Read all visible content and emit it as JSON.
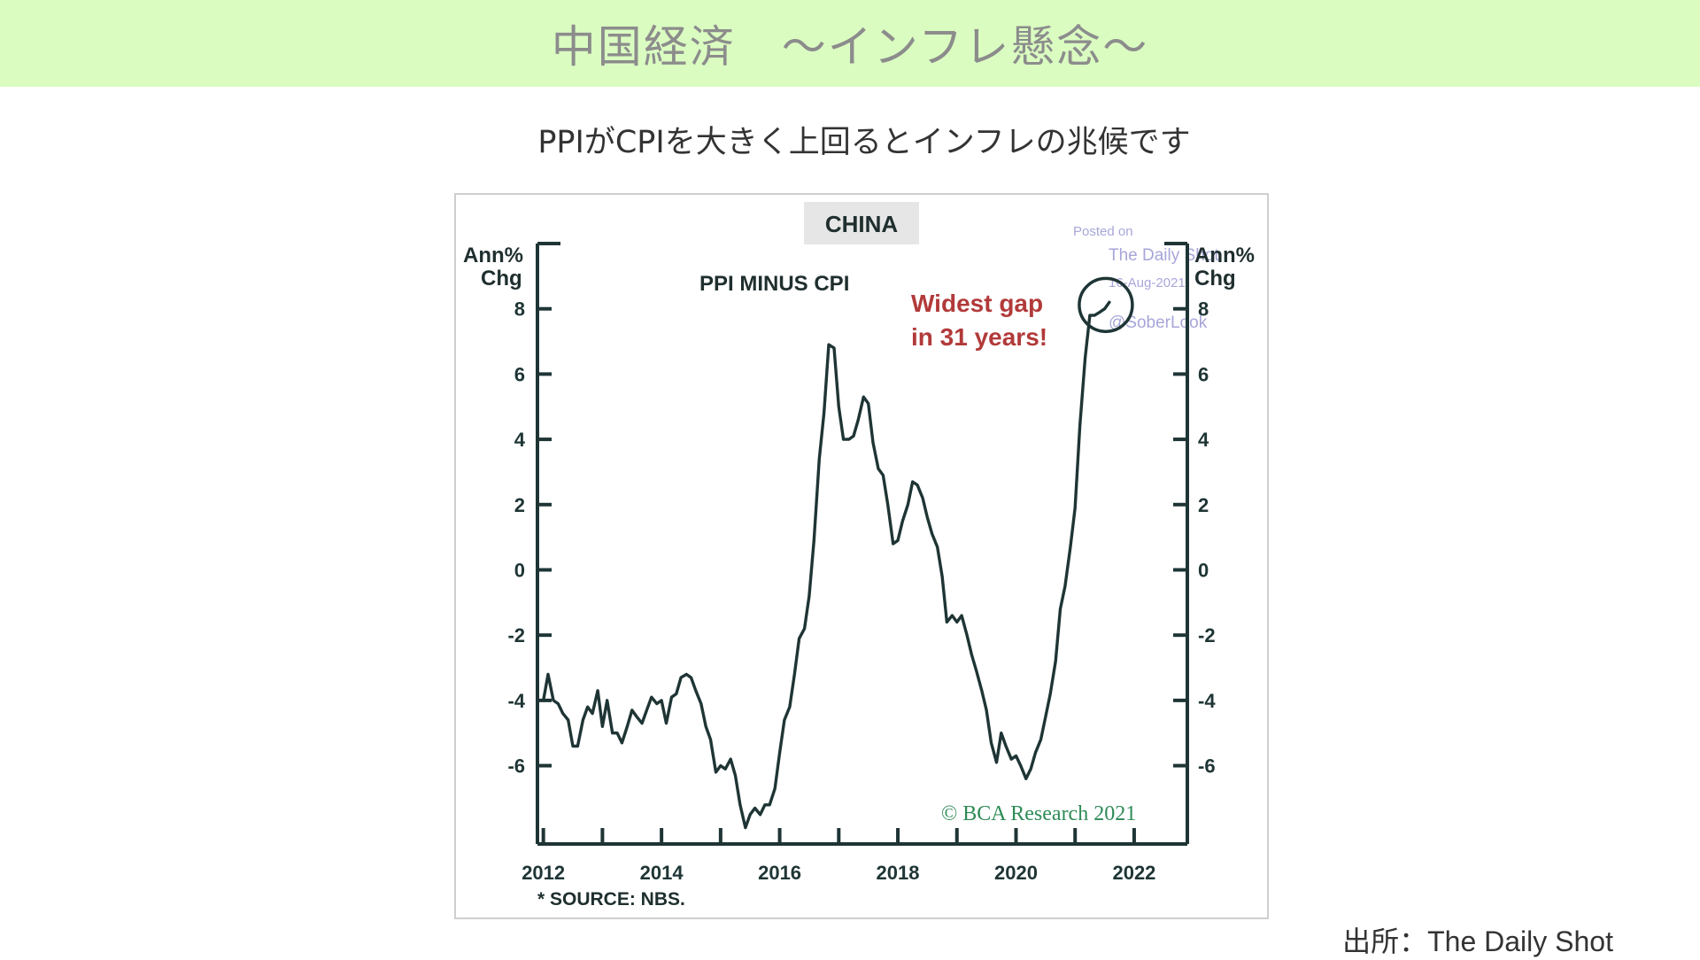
{
  "header": {
    "title": "中国経済　～インフレ懸念～"
  },
  "subtitle": "PPIがCPIを大きく上回るとインフレの兆候です",
  "source_credit": "出所：The Daily Shot",
  "chart_data": {
    "type": "line",
    "title": "CHINA",
    "subtitle": "PPI MINUS CPI",
    "ylabel_left": [
      "Ann%",
      "Chg"
    ],
    "ylabel_right": [
      "Ann%",
      "Chg"
    ],
    "ylim": [
      -8.4,
      10
    ],
    "yticks": [
      -6,
      -4,
      -2,
      0,
      2,
      4,
      6,
      8
    ],
    "ytick_labels": [
      "-6",
      "-4",
      "-2",
      "0",
      "2",
      "4",
      "6",
      "8"
    ],
    "xlim": [
      2011.9,
      2022.9
    ],
    "xticks": [
      2012,
      2013,
      2014,
      2015,
      2016,
      2017,
      2018,
      2019,
      2020,
      2021,
      2022
    ],
    "xtick_labels": [
      "2012",
      "2014",
      "2016",
      "2018",
      "2020",
      "2022"
    ],
    "xtick_label_values": [
      2012,
      2014,
      2016,
      2018,
      2020,
      2022
    ],
    "annotation": [
      "Widest gap",
      "in 31 years!"
    ],
    "annotation_color": "#b23a3a",
    "footnote": "* SOURCE: NBS.",
    "copyright": "© BCA Research 2021",
    "copyright_color": "#2e8b57",
    "line_color": "#1f3535",
    "watermark": [
      "Posted on",
      "The Daily Shot",
      "16-Aug-2021",
      "@SoberLook"
    ],
    "x": [
      2012.0,
      2012.08,
      2012.17,
      2012.25,
      2012.33,
      2012.42,
      2012.5,
      2012.58,
      2012.67,
      2012.75,
      2012.83,
      2012.92,
      2013.0,
      2013.08,
      2013.17,
      2013.25,
      2013.33,
      2013.42,
      2013.5,
      2013.58,
      2013.67,
      2013.75,
      2013.83,
      2013.92,
      2014.0,
      2014.08,
      2014.17,
      2014.25,
      2014.33,
      2014.42,
      2014.5,
      2014.58,
      2014.67,
      2014.75,
      2014.83,
      2014.92,
      2015.0,
      2015.08,
      2015.17,
      2015.25,
      2015.33,
      2015.42,
      2015.5,
      2015.58,
      2015.67,
      2015.75,
      2015.83,
      2015.92,
      2016.0,
      2016.08,
      2016.17,
      2016.25,
      2016.33,
      2016.42,
      2016.5,
      2016.58,
      2016.67,
      2016.75,
      2016.83,
      2016.92,
      2017.0,
      2017.08,
      2017.17,
      2017.25,
      2017.33,
      2017.42,
      2017.5,
      2017.58,
      2017.67,
      2017.75,
      2017.83,
      2017.92,
      2018.0,
      2018.08,
      2018.17,
      2018.25,
      2018.33,
      2018.42,
      2018.5,
      2018.58,
      2018.67,
      2018.75,
      2018.83,
      2018.92,
      2019.0,
      2019.08,
      2019.17,
      2019.25,
      2019.33,
      2019.42,
      2019.5,
      2019.58,
      2019.67,
      2019.75,
      2019.83,
      2019.92,
      2020.0,
      2020.08,
      2020.17,
      2020.25,
      2020.33,
      2020.42,
      2020.5,
      2020.58,
      2020.67,
      2020.75,
      2020.83,
      2020.92,
      2021.0,
      2021.08,
      2021.17,
      2021.25,
      2021.33,
      2021.42,
      2021.5,
      2021.58
    ],
    "y": [
      -4.0,
      -3.2,
      -4.0,
      -4.1,
      -4.4,
      -4.6,
      -5.4,
      -5.4,
      -4.6,
      -4.2,
      -4.4,
      -3.7,
      -4.8,
      -4.0,
      -5.0,
      -5.0,
      -5.3,
      -4.8,
      -4.3,
      -4.5,
      -4.7,
      -4.3,
      -3.9,
      -4.1,
      -4.0,
      -4.7,
      -3.9,
      -3.8,
      -3.3,
      -3.2,
      -3.3,
      -3.7,
      -4.1,
      -4.8,
      -5.2,
      -6.2,
      -6.0,
      -6.1,
      -5.8,
      -6.3,
      -7.2,
      -7.9,
      -7.5,
      -7.3,
      -7.5,
      -7.2,
      -7.2,
      -6.7,
      -5.6,
      -4.6,
      -4.2,
      -3.2,
      -2.1,
      -1.8,
      -0.8,
      0.9,
      3.4,
      4.8,
      6.9,
      6.8,
      5.0,
      4.0,
      4.0,
      4.1,
      4.6,
      5.3,
      5.1,
      3.9,
      3.1,
      2.9,
      2.0,
      0.8,
      0.9,
      1.5,
      2.0,
      2.7,
      2.6,
      2.2,
      1.6,
      1.1,
      0.7,
      -0.2,
      -1.6,
      -1.4,
      -1.6,
      -1.4,
      -2.0,
      -2.6,
      -3.1,
      -3.7,
      -4.3,
      -5.3,
      -5.9,
      -5.0,
      -5.4,
      -5.8,
      -5.7,
      -6.0,
      -6.4,
      -6.1,
      -5.6,
      -5.2,
      -4.5,
      -3.8,
      -2.8,
      -1.2,
      -0.5,
      0.7,
      1.9,
      4.4,
      6.5,
      7.8,
      7.8,
      7.9,
      8.0,
      8.2
    ]
  }
}
